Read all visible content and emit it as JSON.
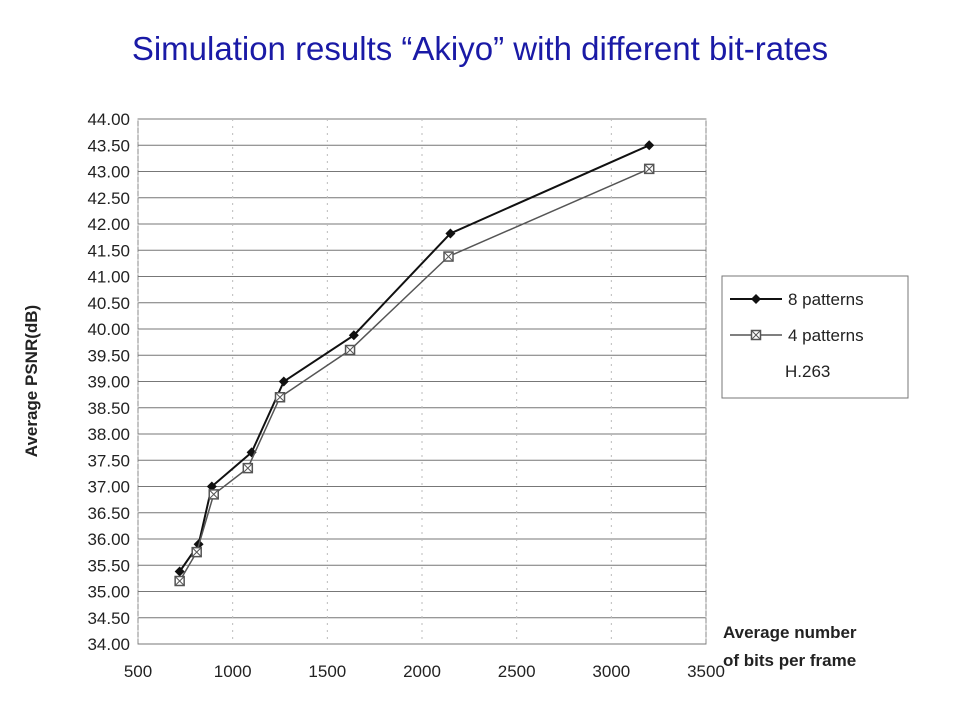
{
  "slide": {
    "title": "Simulation results “Akiyo” with different bit-rates"
  },
  "chart_data": {
    "type": "line",
    "title": "Simulation results “Akiyo” with different bit-rates",
    "xlabel_lines": [
      "Average number",
      "of bits per frame"
    ],
    "ylabel": "Average PSNR(dB)",
    "xlim": [
      500,
      3500
    ],
    "ylim": [
      34.0,
      44.0
    ],
    "x_ticks": [
      500,
      1000,
      1500,
      2000,
      2500,
      3000,
      3500
    ],
    "x_tick_labels": [
      "500",
      "1000",
      "1500",
      "2000",
      "2500",
      "3000",
      "3500"
    ],
    "y_ticks": [
      34.0,
      34.5,
      35.0,
      35.5,
      36.0,
      36.5,
      37.0,
      37.5,
      38.0,
      38.5,
      39.0,
      39.5,
      40.0,
      40.5,
      41.0,
      41.5,
      42.0,
      42.5,
      43.0,
      43.5,
      44.0
    ],
    "y_tick_labels": [
      "34.00",
      "34.50",
      "35.00",
      "35.50",
      "36.00",
      "36.50",
      "37.00",
      "37.50",
      "38.00",
      "38.50",
      "39.00",
      "39.50",
      "40.00",
      "40.50",
      "41.00",
      "41.50",
      "42.00",
      "42.50",
      "43.00",
      "43.50",
      "44.00"
    ],
    "grid": true,
    "legend": "right",
    "series": [
      {
        "name": "8 patterns",
        "marker": "diamond",
        "color": "#111111",
        "x": [
          720,
          820,
          890,
          1100,
          1270,
          1640,
          2150,
          3200
        ],
        "y": [
          35.38,
          35.9,
          37.0,
          37.65,
          39.0,
          39.88,
          41.82,
          43.5
        ]
      },
      {
        "name": "4 patterns",
        "marker": "square",
        "color": "#555555",
        "x": [
          720,
          810,
          900,
          1080,
          1250,
          1620,
          2140,
          3200
        ],
        "y": [
          35.2,
          35.75,
          36.85,
          37.35,
          38.7,
          39.6,
          41.38,
          43.05
        ]
      },
      {
        "name": "H.263",
        "marker": "none",
        "color": "#999999",
        "x": [],
        "y": []
      }
    ]
  }
}
